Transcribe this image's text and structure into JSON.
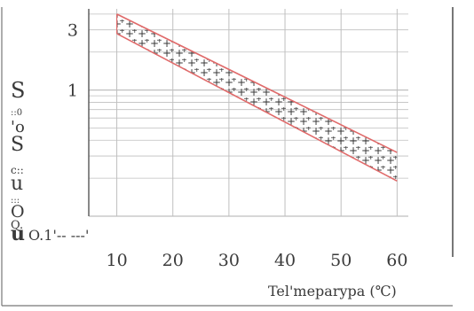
{
  "chart_data": {
    "type": "area",
    "title": "",
    "xlabel": "Tel'meparypa (℃)",
    "ylabel_glyphs": [
      "S",
      "::0",
      "'o",
      "S",
      "c::",
      "u",
      ":::",
      "O",
      "Q.",
      "u"
    ],
    "y_bottom_label": "O.1'-- ---'",
    "x_ticks": [
      "10",
      "20",
      "30",
      "40",
      "50",
      "60"
    ],
    "y_ticks": [
      {
        "label": "3",
        "value": 3
      },
      {
        "label": "1",
        "value": 1
      }
    ],
    "xlim": [
      5,
      62
    ],
    "ylim": [
      0.1,
      4.4
    ],
    "y_scale": "log",
    "grid": true,
    "band_fill": "dotted",
    "colors": {
      "band_edge": "#e06a6a",
      "grid": "#bfbfbf",
      "dots": "#1a1a1a",
      "axis": "#555555"
    },
    "series": [
      {
        "x": [
          10,
          60
        ],
        "y": [
          4.0,
          0.32
        ]
      },
      {
        "x": [
          10,
          60
        ],
        "y": [
          2.8,
          0.19
        ]
      }
    ]
  }
}
